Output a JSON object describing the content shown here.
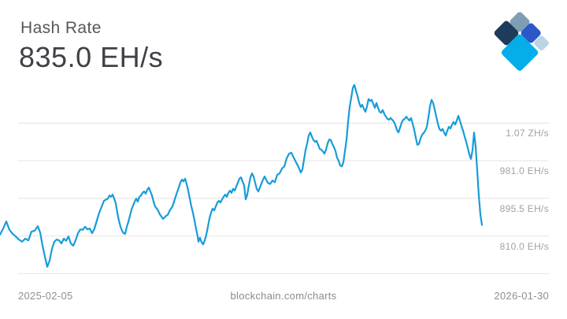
{
  "header": {
    "title": "Hash Rate",
    "value": "835.0 EH/s"
  },
  "logo": {
    "colors": {
      "slate": "#7e9fb2",
      "navy": "#1d3c5b",
      "royal": "#2c57c8",
      "cyan": "#05aee8",
      "light": "#b9d5e4"
    }
  },
  "chart_data": {
    "type": "line",
    "title": "Hash Rate",
    "current_value": "835.0 EH/s",
    "unit": "EH/s",
    "watermark": "blockchain.com/charts",
    "x_axis": {
      "start_label": "2025-02-05",
      "end_label": "2026-01-30"
    },
    "y_ticks": [
      {
        "label": "1.07 ZH/s",
        "value": 1066.5
      },
      {
        "label": "981.0 EH/s",
        "value": 981
      },
      {
        "label": "895.5 EH/s",
        "value": 895.5
      },
      {
        "label": "810.0 EH/s",
        "value": 810
      },
      {
        "label": "",
        "value": 724.5
      }
    ],
    "ylim": [
      700,
      1180
    ],
    "grid": true,
    "legend": false,
    "line_color": "#189cd9",
    "grid_color": "#e4e4e4",
    "series": [
      {
        "name": "Hash Rate (EH/s)",
        "points": [
          [
            0,
            813
          ],
          [
            4,
            827
          ],
          [
            8,
            843
          ],
          [
            12,
            824
          ],
          [
            16,
            815
          ],
          [
            20,
            809
          ],
          [
            24,
            802
          ],
          [
            28,
            797
          ],
          [
            32,
            804
          ],
          [
            36,
            800
          ],
          [
            40,
            820
          ],
          [
            44,
            822
          ],
          [
            48,
            832
          ],
          [
            51,
            818
          ],
          [
            54,
            788
          ],
          [
            57,
            763
          ],
          [
            60,
            740
          ],
          [
            63,
            754
          ],
          [
            66,
            781
          ],
          [
            69,
            797
          ],
          [
            72,
            802
          ],
          [
            75,
            800
          ],
          [
            78,
            793
          ],
          [
            81,
            804
          ],
          [
            84,
            799
          ],
          [
            87,
            809
          ],
          [
            90,
            793
          ],
          [
            93,
            788
          ],
          [
            96,
            800
          ],
          [
            99,
            816
          ],
          [
            102,
            825
          ],
          [
            105,
            824
          ],
          [
            108,
            831
          ],
          [
            111,
            825
          ],
          [
            114,
            827
          ],
          [
            117,
            816
          ],
          [
            120,
            827
          ],
          [
            123,
            845
          ],
          [
            126,
            863
          ],
          [
            129,
            876
          ],
          [
            132,
            890
          ],
          [
            135,
            893
          ],
          [
            137,
            895
          ],
          [
            139,
            902
          ],
          [
            141,
            899
          ],
          [
            143,
            904
          ],
          [
            145,
            895
          ],
          [
            147,
            884
          ],
          [
            149,
            863
          ],
          [
            151,
            845
          ],
          [
            153,
            831
          ],
          [
            155,
            822
          ],
          [
            157,
            816
          ],
          [
            159,
            815
          ],
          [
            161,
            831
          ],
          [
            163,
            842
          ],
          [
            165,
            856
          ],
          [
            167,
            870
          ],
          [
            169,
            879
          ],
          [
            171,
            888
          ],
          [
            173,
            895
          ],
          [
            175,
            888
          ],
          [
            177,
            899
          ],
          [
            179,
            902
          ],
          [
            181,
            908
          ],
          [
            183,
            911
          ],
          [
            185,
            906
          ],
          [
            187,
            915
          ],
          [
            189,
            920
          ],
          [
            191,
            911
          ],
          [
            193,
            902
          ],
          [
            195,
            888
          ],
          [
            197,
            877
          ],
          [
            199,
            872
          ],
          [
            201,
            867
          ],
          [
            203,
            859
          ],
          [
            205,
            854
          ],
          [
            207,
            849
          ],
          [
            209,
            852
          ],
          [
            211,
            856
          ],
          [
            213,
            858
          ],
          [
            215,
            866
          ],
          [
            217,
            872
          ],
          [
            219,
            877
          ],
          [
            221,
            888
          ],
          [
            223,
            899
          ],
          [
            225,
            910
          ],
          [
            227,
            920
          ],
          [
            229,
            931
          ],
          [
            231,
            938
          ],
          [
            233,
            934
          ],
          [
            235,
            940
          ],
          [
            237,
            928
          ],
          [
            239,
            913
          ],
          [
            241,
            895
          ],
          [
            243,
            877
          ],
          [
            245,
            863
          ],
          [
            247,
            845
          ],
          [
            249,
            826
          ],
          [
            251,
            809
          ],
          [
            252,
            797
          ],
          [
            254,
            806
          ],
          [
            255,
            800
          ],
          [
            257,
            793
          ],
          [
            258,
            791
          ],
          [
            260,
            800
          ],
          [
            262,
            813
          ],
          [
            264,
            831
          ],
          [
            266,
            850
          ],
          [
            268,
            863
          ],
          [
            270,
            872
          ],
          [
            272,
            868
          ],
          [
            274,
            877
          ],
          [
            276,
            886
          ],
          [
            278,
            890
          ],
          [
            280,
            886
          ],
          [
            282,
            893
          ],
          [
            284,
            899
          ],
          [
            286,
            904
          ],
          [
            288,
            899
          ],
          [
            290,
            908
          ],
          [
            292,
            913
          ],
          [
            294,
            908
          ],
          [
            296,
            917
          ],
          [
            298,
            913
          ],
          [
            300,
            922
          ],
          [
            302,
            931
          ],
          [
            304,
            940
          ],
          [
            306,
            943
          ],
          [
            308,
            934
          ],
          [
            310,
            925
          ],
          [
            312,
            893
          ],
          [
            314,
            904
          ],
          [
            316,
            925
          ],
          [
            318,
            943
          ],
          [
            320,
            952
          ],
          [
            322,
            945
          ],
          [
            324,
            931
          ],
          [
            326,
            917
          ],
          [
            328,
            911
          ],
          [
            330,
            920
          ],
          [
            332,
            929
          ],
          [
            334,
            938
          ],
          [
            336,
            945
          ],
          [
            338,
            938
          ],
          [
            340,
            931
          ],
          [
            343,
            928
          ],
          [
            346,
            936
          ],
          [
            349,
            932
          ],
          [
            352,
            949
          ],
          [
            355,
            952
          ],
          [
            358,
            963
          ],
          [
            361,
            968
          ],
          [
            364,
            986
          ],
          [
            367,
            997
          ],
          [
            370,
            999
          ],
          [
            373,
            988
          ],
          [
            376,
            977
          ],
          [
            379,
            967
          ],
          [
            382,
            954
          ],
          [
            384,
            961
          ],
          [
            386,
            983
          ],
          [
            388,
            1005
          ],
          [
            390,
            1020
          ],
          [
            392,
            1038
          ],
          [
            394,
            1045
          ],
          [
            396,
            1036
          ],
          [
            398,
            1028
          ],
          [
            400,
            1024
          ],
          [
            402,
            1026
          ],
          [
            404,
            1017
          ],
          [
            406,
            1008
          ],
          [
            408,
            1006
          ],
          [
            410,
            1002
          ],
          [
            412,
            997
          ],
          [
            414,
            1006
          ],
          [
            416,
            1020
          ],
          [
            418,
            1029
          ],
          [
            420,
            1028
          ],
          [
            422,
            1019
          ],
          [
            424,
            1012
          ],
          [
            426,
            1003
          ],
          [
            428,
            988
          ],
          [
            430,
            981
          ],
          [
            432,
            970
          ],
          [
            434,
            968
          ],
          [
            436,
            977
          ],
          [
            438,
            1002
          ],
          [
            440,
            1028
          ],
          [
            442,
            1069
          ],
          [
            444,
            1103
          ],
          [
            446,
            1124
          ],
          [
            448,
            1146
          ],
          [
            450,
            1153
          ],
          [
            452,
            1140
          ],
          [
            454,
            1128
          ],
          [
            456,
            1113
          ],
          [
            458,
            1103
          ],
          [
            460,
            1108
          ],
          [
            462,
            1099
          ],
          [
            464,
            1092
          ],
          [
            466,
            1104
          ],
          [
            468,
            1121
          ],
          [
            470,
            1117
          ],
          [
            472,
            1119
          ],
          [
            474,
            1110
          ],
          [
            476,
            1101
          ],
          [
            478,
            1112
          ],
          [
            480,
            1101
          ],
          [
            482,
            1092
          ],
          [
            484,
            1090
          ],
          [
            486,
            1096
          ],
          [
            488,
            1087
          ],
          [
            490,
            1081
          ],
          [
            492,
            1076
          ],
          [
            494,
            1074
          ],
          [
            496,
            1078
          ],
          [
            498,
            1074
          ],
          [
            500,
            1070
          ],
          [
            502,
            1062
          ],
          [
            504,
            1051
          ],
          [
            506,
            1045
          ],
          [
            508,
            1056
          ],
          [
            510,
            1067
          ],
          [
            512,
            1074
          ],
          [
            514,
            1076
          ],
          [
            516,
            1081
          ],
          [
            518,
            1076
          ],
          [
            520,
            1072
          ],
          [
            522,
            1078
          ],
          [
            524,
            1065
          ],
          [
            526,
            1051
          ],
          [
            528,
            1033
          ],
          [
            530,
            1017
          ],
          [
            532,
            1019
          ],
          [
            534,
            1031
          ],
          [
            536,
            1040
          ],
          [
            538,
            1044
          ],
          [
            540,
            1049
          ],
          [
            542,
            1058
          ],
          [
            544,
            1079
          ],
          [
            546,
            1104
          ],
          [
            548,
            1119
          ],
          [
            550,
            1112
          ],
          [
            552,
            1097
          ],
          [
            554,
            1081
          ],
          [
            556,
            1065
          ],
          [
            558,
            1053
          ],
          [
            560,
            1049
          ],
          [
            562,
            1053
          ],
          [
            564,
            1045
          ],
          [
            566,
            1038
          ],
          [
            568,
            1049
          ],
          [
            570,
            1058
          ],
          [
            572,
            1054
          ],
          [
            574,
            1063
          ],
          [
            576,
            1069
          ],
          [
            578,
            1063
          ],
          [
            580,
            1072
          ],
          [
            582,
            1083
          ],
          [
            584,
            1072
          ],
          [
            586,
            1060
          ],
          [
            588,
            1049
          ],
          [
            590,
            1036
          ],
          [
            592,
            1024
          ],
          [
            594,
            1010
          ],
          [
            596,
            995
          ],
          [
            598,
            985
          ],
          [
            600,
            1005
          ],
          [
            602,
            1045
          ],
          [
            604,
            1013
          ],
          [
            606,
            959
          ],
          [
            608,
            902
          ],
          [
            610,
            859
          ],
          [
            612,
            835
          ]
        ]
      }
    ]
  }
}
